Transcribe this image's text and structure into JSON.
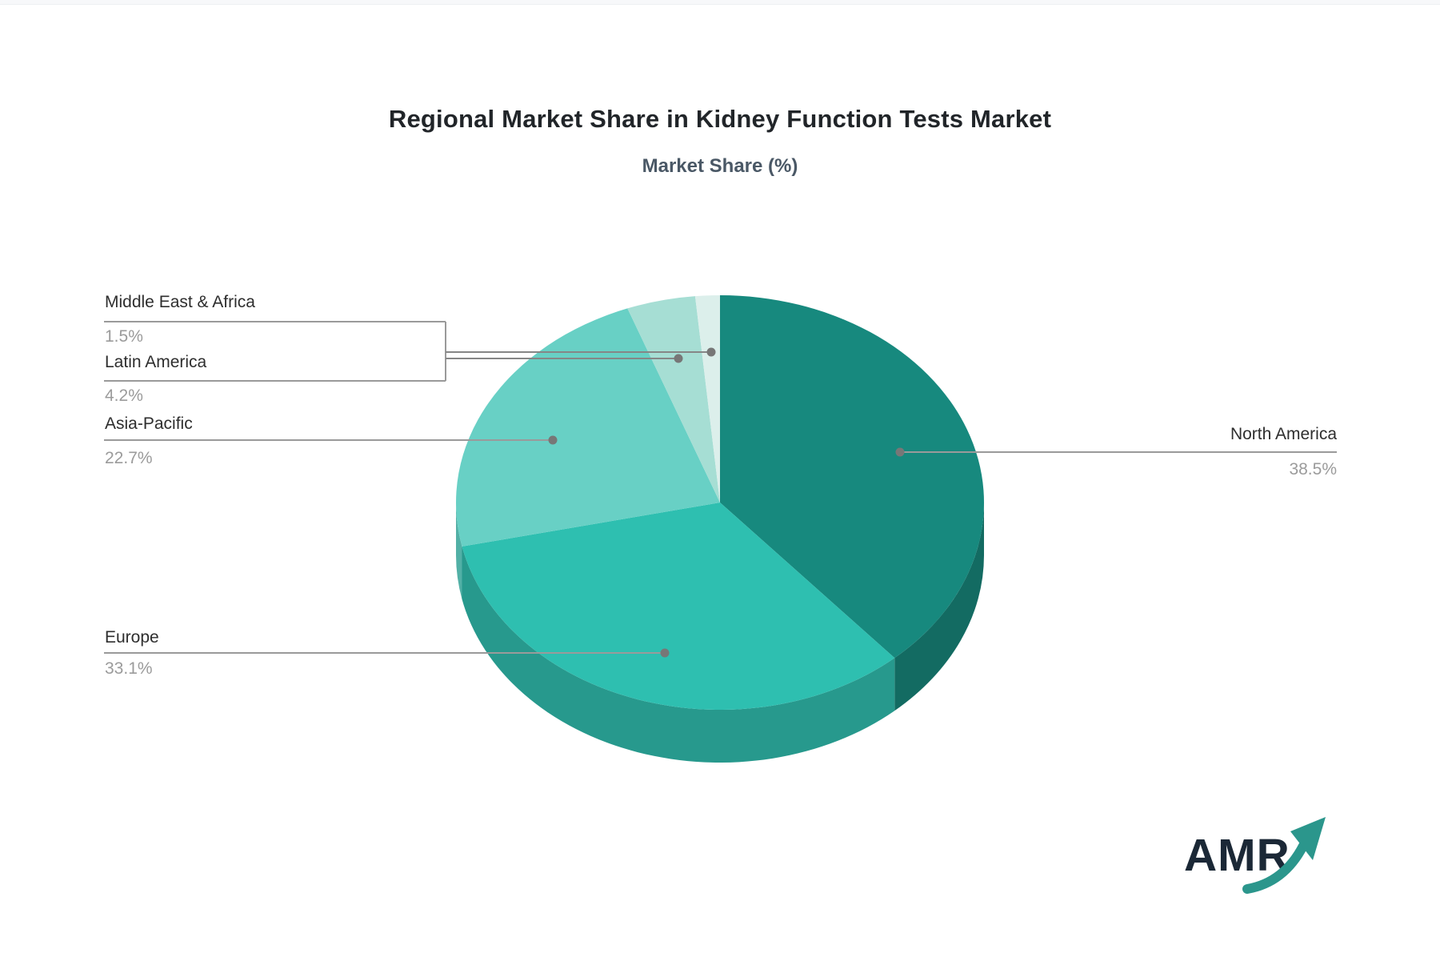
{
  "page": {
    "background": "#ffffff",
    "top_strip_color": "#f7f8fa"
  },
  "chart": {
    "title": "Regional Market Share in Kidney Function Tests Market",
    "subtitle": "Market Share (%)"
  },
  "chart_data": {
    "type": "pie",
    "style": "3d",
    "title": "Regional Market Share in Kidney Function Tests Market",
    "subtitle": "Market Share (%)",
    "unit": "%",
    "start_angle_deg": 0,
    "direction": "clockwise",
    "slices": [
      {
        "label": "North America",
        "value": 38.5,
        "pct_label": "38.5%",
        "color": "#17897e",
        "side_color": "#136b62"
      },
      {
        "label": "Europe",
        "value": 33.1,
        "pct_label": "33.1%",
        "color": "#2ebfb0",
        "side_color": "#27998d"
      },
      {
        "label": "Asia-Pacific",
        "value": 22.7,
        "pct_label": "22.7%",
        "color": "#68d0c5",
        "side_color": "#52b0a6"
      },
      {
        "label": "Latin America",
        "value": 4.2,
        "pct_label": "4.2%",
        "color": "#a6ded4",
        "side_color": "#8cc9bf"
      },
      {
        "label": "Middle East & Africa",
        "value": 1.5,
        "pct_label": "1.5%",
        "color": "#dcefeb",
        "side_color": "#bcd9d4"
      }
    ],
    "legend": "none",
    "labels_layout": "callout lines with name above rule and percent below",
    "callout_line_color": "#8a8a8a"
  },
  "labels": {
    "mea": {
      "name": "Middle East & Africa",
      "pct": "1.5%"
    },
    "latam": {
      "name": "Latin America",
      "pct": "4.2%"
    },
    "ap": {
      "name": "Asia-Pacific",
      "pct": "22.7%"
    },
    "europe": {
      "name": "Europe",
      "pct": "33.1%"
    },
    "na": {
      "name": "North America",
      "pct": "38.5%"
    }
  },
  "logo": {
    "text": "AMR",
    "text_color": "#1b2836",
    "arrow_color": "#2b968c"
  }
}
